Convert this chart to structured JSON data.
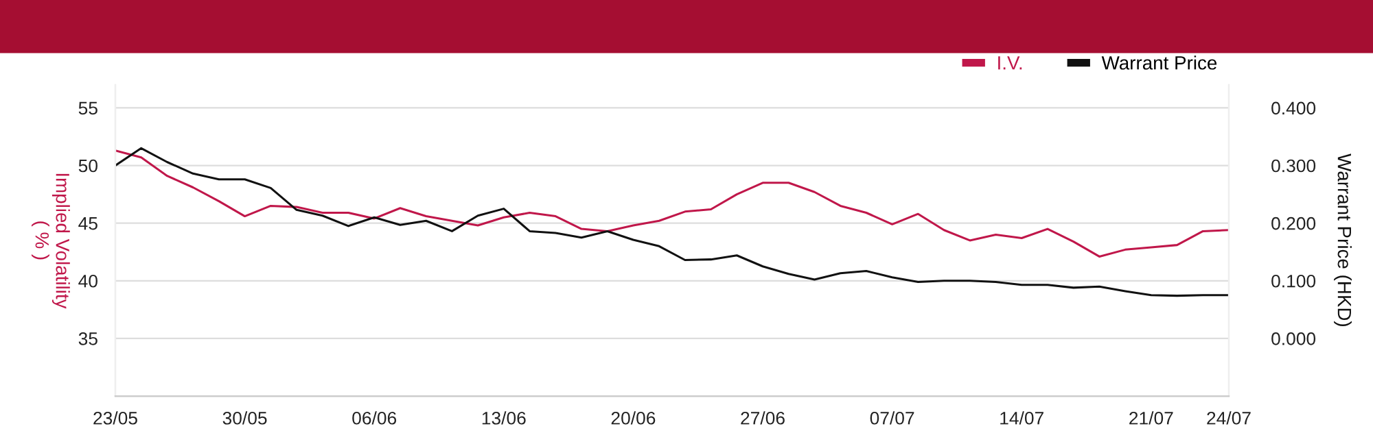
{
  "chart_data": {
    "type": "line",
    "ylabel": "Implied Volatility\n( % )",
    "y2label": "Warrant Price (HKD)",
    "categories": [
      "23/05",
      null,
      null,
      null,
      null,
      "30/05",
      null,
      null,
      null,
      null,
      "06/06",
      null,
      null,
      null,
      null,
      "13/06",
      null,
      null,
      null,
      null,
      "20/06",
      null,
      null,
      null,
      null,
      "27/06",
      null,
      null,
      null,
      null,
      "07/07",
      null,
      null,
      null,
      null,
      "14/07",
      null,
      null,
      null,
      null,
      "21/07",
      null,
      null,
      "24/07"
    ],
    "series": [
      {
        "name": "I.V.",
        "color": "#c0174a",
        "values": [
          51.3,
          50.7,
          49.1,
          48.1,
          46.9,
          45.6,
          46.5,
          46.4,
          45.9,
          45.9,
          45.4,
          46.3,
          45.6,
          45.2,
          44.8,
          45.5,
          45.9,
          45.6,
          44.5,
          44.3,
          44.8,
          45.2,
          46.0,
          46.2,
          47.5,
          48.5,
          48.5,
          47.7,
          46.5,
          45.9,
          44.9,
          45.8,
          44.4,
          43.5,
          44.0,
          43.7,
          44.5,
          43.4,
          42.1,
          42.7,
          42.9,
          43.1,
          44.3,
          44.4
        ]
      },
      {
        "name": "Warrant Price",
        "color": "#111111",
        "axis": "y2",
        "values": [
          0.3,
          0.33,
          0.306,
          0.286,
          0.276,
          0.276,
          0.261,
          0.223,
          0.213,
          0.195,
          0.21,
          0.197,
          0.204,
          0.186,
          0.213,
          0.225,
          0.186,
          0.183,
          0.175,
          0.186,
          0.171,
          0.16,
          0.136,
          0.137,
          0.144,
          0.125,
          0.112,
          0.102,
          0.113,
          0.117,
          0.106,
          0.098,
          0.1,
          0.1,
          0.098,
          0.093,
          0.093,
          0.088,
          0.09,
          0.082,
          0.075,
          0.074,
          0.075,
          0.075
        ]
      }
    ],
    "ylim": [
      30,
      57
    ],
    "yticks": [
      35,
      40,
      45,
      50,
      55
    ],
    "y2lim": [
      -0.1,
      0.44
    ],
    "y2ticks": [
      {
        "value": 0,
        "label": "0.000"
      },
      {
        "value": 0.1,
        "label": "0.100"
      },
      {
        "value": 0.2,
        "label": "0.200"
      },
      {
        "value": 0.3,
        "label": "0.300"
      },
      {
        "value": 0.4,
        "label": "0.400"
      }
    ],
    "grid": "y",
    "legend": "top right",
    "marker": "none",
    "line_style": "solid"
  }
}
